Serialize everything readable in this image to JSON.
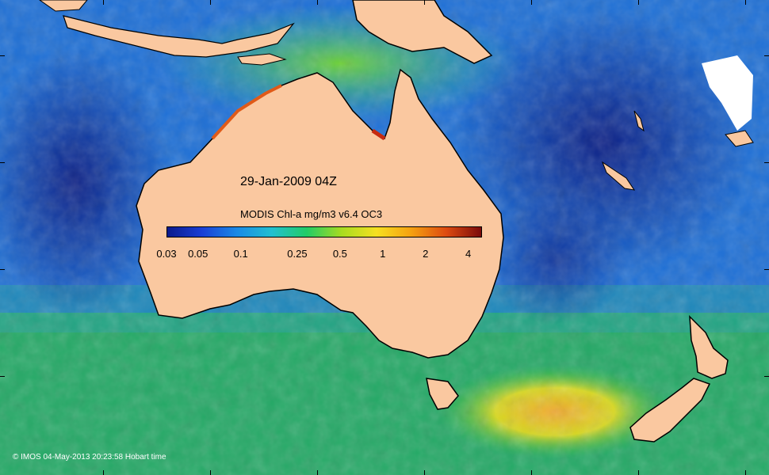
{
  "map": {
    "date_label": "29-Jan-2009 04Z",
    "colorbar": {
      "title": "MODIS Chl-a mg/m3 v6.4 OC3",
      "ticks": [
        "0.03",
        "0.05",
        "0.1",
        "0.25",
        "0.5",
        "1",
        "2",
        "4"
      ],
      "colors": [
        "#0a1a8c",
        "#1a3fd6",
        "#1a8ae6",
        "#22c0d0",
        "#22cc66",
        "#a8dc20",
        "#f6e020",
        "#f5a010",
        "#dd4a10",
        "#7a0a0a"
      ]
    },
    "credit": "© IMOS 04-May-2013 20:23:58 Hobart time",
    "colors": {
      "land": "#fac8a0",
      "coast": "#000000",
      "ocean_deep": "#0c2a94",
      "ocean_mid": "#1b6fd8",
      "ocean_green": "#22b84a"
    }
  }
}
